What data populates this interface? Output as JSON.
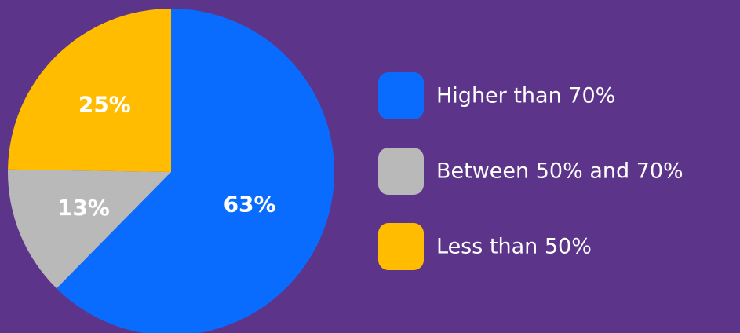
{
  "chart_data": {
    "type": "pie",
    "slices": [
      {
        "label": "Higher than 70%",
        "value": 63,
        "display": "63%",
        "color": "#0a6cff"
      },
      {
        "label": "Between 50% and 70%",
        "value": 13,
        "display": "13%",
        "color": "#b9b9b9"
      },
      {
        "label": "Less than 50%",
        "value": 25,
        "display": "25%",
        "color": "#ffbc00"
      }
    ],
    "start_angle_deg": 0,
    "direction": "clockwise",
    "legend_position": "right",
    "label_color": "#ffffff"
  },
  "background_color": "#5c358a"
}
